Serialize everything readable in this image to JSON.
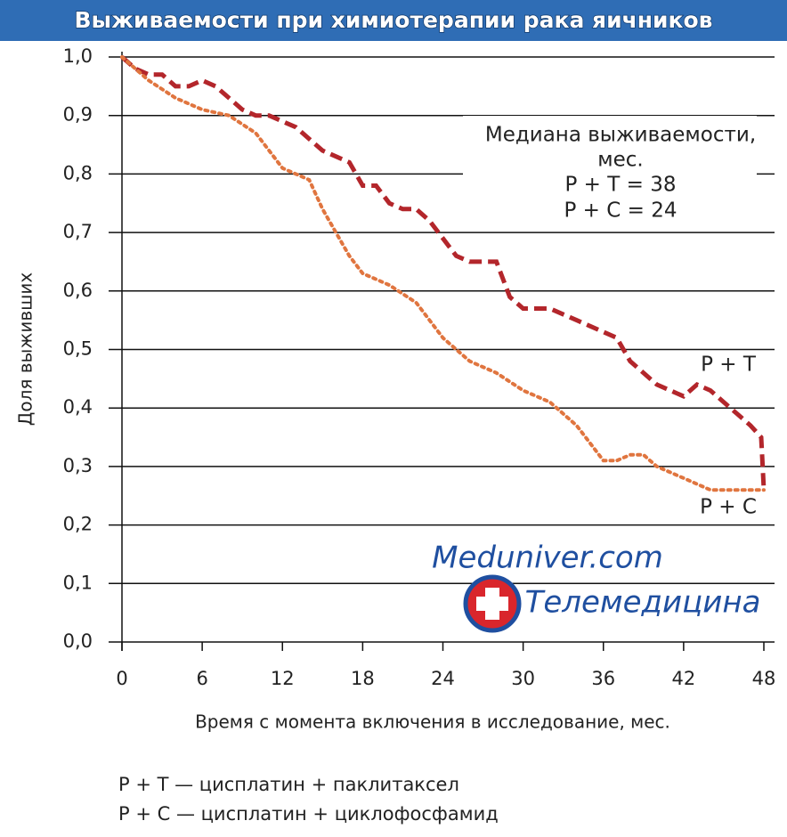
{
  "chart_data": {
    "type": "line",
    "title": "Выживаемости при химиотерапии рака яичников",
    "xlabel": "Время с момента включения в исследование, мес.",
    "ylabel": "Доля выживших",
    "xlim": [
      0,
      48
    ],
    "xticks": [
      0,
      6,
      12,
      18,
      24,
      30,
      36,
      42,
      48
    ],
    "ylim": [
      0,
      1
    ],
    "yticks": [
      {
        "value": 0,
        "label": "0,0"
      },
      {
        "value": 0.1,
        "label": "0,1"
      },
      {
        "value": 0.2,
        "label": "0,2"
      },
      {
        "value": 0.3,
        "label": "0,3"
      },
      {
        "value": 0.4,
        "label": "0,4"
      },
      {
        "value": 0.5,
        "label": "0,5"
      },
      {
        "value": 0.6,
        "label": "0,6"
      },
      {
        "value": 0.7,
        "label": "0,7"
      },
      {
        "value": 0.8,
        "label": "0,8"
      },
      {
        "value": 0.9,
        "label": "0,9"
      },
      {
        "value": 1,
        "label": "1,0"
      }
    ],
    "grid": true,
    "annotation": [
      "Медиана выживаемости,",
      "мес.",
      "P + T = 38",
      "P + C = 24"
    ],
    "footnotes": [
      "P + T — цисплатин + паклитаксел",
      "P + C — цисплатин + циклофосфамид"
    ],
    "watermark": [
      "Meduniver.com",
      "Телемедицина"
    ],
    "series": [
      {
        "name": "P + T",
        "color": "#b3262b",
        "dash": "dashed",
        "x": [
          0,
          1,
          2,
          3,
          4,
          5,
          6,
          7,
          8,
          9,
          10,
          11,
          12,
          13,
          14,
          15,
          16,
          17,
          18,
          19,
          20,
          21,
          22,
          23,
          24,
          25,
          26,
          27,
          28,
          29,
          30,
          31,
          32,
          33,
          34,
          35,
          36,
          37,
          38,
          39,
          40,
          41,
          42,
          43,
          44,
          45,
          46,
          47,
          47.8,
          48
        ],
        "values": [
          1.0,
          0.98,
          0.97,
          0.97,
          0.95,
          0.95,
          0.96,
          0.95,
          0.93,
          0.91,
          0.9,
          0.9,
          0.89,
          0.88,
          0.86,
          0.84,
          0.83,
          0.82,
          0.78,
          0.78,
          0.75,
          0.74,
          0.74,
          0.72,
          0.69,
          0.66,
          0.65,
          0.65,
          0.65,
          0.59,
          0.57,
          0.57,
          0.57,
          0.56,
          0.55,
          0.54,
          0.53,
          0.52,
          0.48,
          0.46,
          0.44,
          0.43,
          0.42,
          0.44,
          0.43,
          0.41,
          0.39,
          0.37,
          0.35,
          0.26
        ]
      },
      {
        "name": "P + C",
        "color": "#e0753f",
        "dash": "dotted",
        "x": [
          0,
          2,
          4,
          6,
          8,
          10,
          12,
          13,
          14,
          15,
          16,
          17,
          18,
          20,
          22,
          24,
          26,
          28,
          30,
          32,
          34,
          36,
          37,
          38,
          39,
          40,
          42,
          44,
          46,
          48
        ],
        "values": [
          1.0,
          0.96,
          0.93,
          0.91,
          0.9,
          0.87,
          0.81,
          0.8,
          0.79,
          0.74,
          0.7,
          0.66,
          0.63,
          0.61,
          0.58,
          0.52,
          0.48,
          0.46,
          0.43,
          0.41,
          0.37,
          0.31,
          0.31,
          0.32,
          0.32,
          0.3,
          0.28,
          0.26,
          0.26,
          0.26
        ]
      }
    ]
  }
}
